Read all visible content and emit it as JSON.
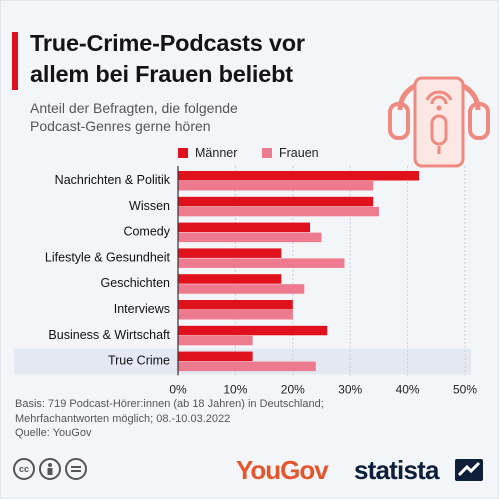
{
  "title_line1": "True-Crime-Podcasts vor",
  "title_line2": "allem bei Frauen beliebt",
  "subtitle_line1": "Anteil der Befragten, die folgende",
  "subtitle_line2": "Podcast-Genres gerne hören",
  "source_line1": "Basis: 719 Podcast-Hörer:innen (ab 18 Jahren) in Deutschland;",
  "source_line2": "Mehrfachantworten möglich; 08.-10.03.2022",
  "source_line3": "Quelle: YouGov",
  "brand_yougov": "YouGov",
  "brand_statista": "statista",
  "icons": [
    "podcast-microphone-icon",
    "cc-icon",
    "person-icon",
    "equals-icon",
    "statista-logo-icon"
  ],
  "colors": {
    "maenner": "#e0101c",
    "frauen": "#ee7a8f",
    "accent": "#e0101c",
    "highlight_row": "#e4e9f1"
  },
  "chart_data": {
    "type": "bar",
    "orientation": "horizontal",
    "title": "True-Crime-Podcasts vor allem bei Frauen beliebt",
    "subtitle": "Anteil der Befragten, die folgende Podcast-Genres gerne hören",
    "categories": [
      "Nachrichten & Politik",
      "Wissen",
      "Comedy",
      "Lifestyle & Gesundheit",
      "Geschichten",
      "Interviews",
      "Business & Wirtschaft",
      "True Crime"
    ],
    "series": [
      {
        "name": "Männer",
        "values": [
          42,
          34,
          23,
          18,
          18,
          20,
          26,
          13
        ]
      },
      {
        "name": "Frauen",
        "values": [
          34,
          35,
          25,
          29,
          22,
          20,
          13,
          24
        ]
      }
    ],
    "xlim": [
      0,
      50
    ],
    "xticks": [
      0,
      10,
      20,
      30,
      40,
      50
    ],
    "xtick_labels": [
      "0%",
      "10%",
      "20%",
      "30%",
      "40%",
      "50%"
    ],
    "highlighted_category": "True Crime",
    "legend": "top-center",
    "grid": true
  }
}
